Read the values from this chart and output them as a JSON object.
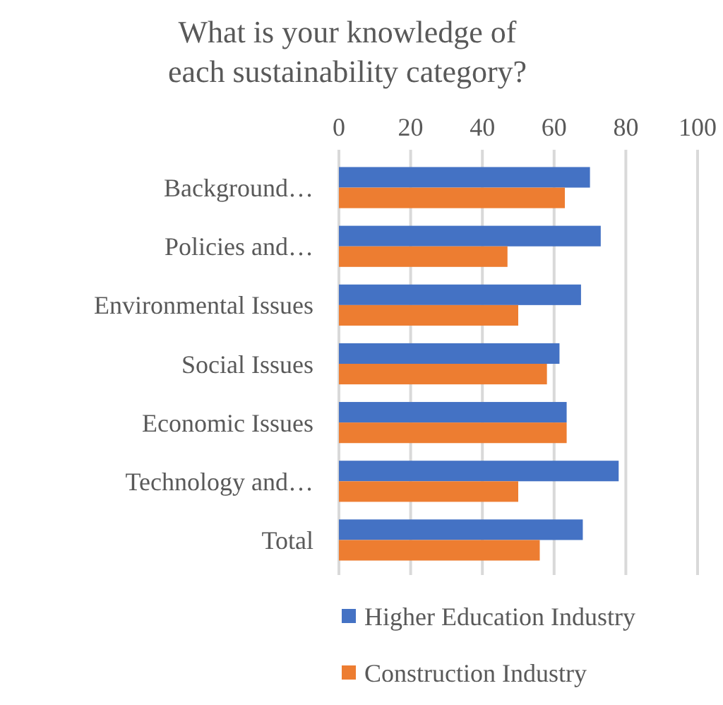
{
  "chart_data": {
    "type": "bar",
    "orientation": "horizontal",
    "title": "What is your knowledge of each sustainability category?",
    "categories": [
      "Background…",
      "Policies and…",
      "Environmental Issues",
      "Social Issues",
      "Economic Issues",
      "Technology and…",
      "Total"
    ],
    "series": [
      {
        "name": "Higher Education Industry",
        "color": "#4472c4",
        "values": [
          70,
          73,
          67.5,
          61.5,
          63.5,
          78,
          68
        ]
      },
      {
        "name": "Construction Industry",
        "color": "#ed7d31",
        "values": [
          63,
          47,
          50,
          58,
          63.5,
          50,
          56
        ]
      }
    ],
    "xlim": [
      0,
      100
    ],
    "xticks": [
      0,
      20,
      40,
      60,
      80,
      100
    ],
    "grid": "x",
    "legend": "bottom"
  }
}
